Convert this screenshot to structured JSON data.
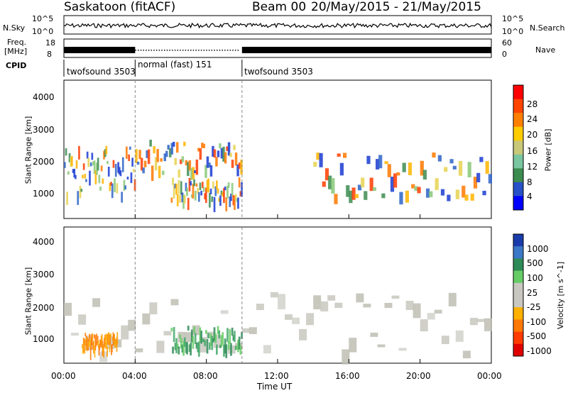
{
  "header": {
    "radar": "Saskatoon (fitACF)",
    "beam": "Beam 00",
    "dates": "20/May/2015 - 21/May/2015"
  },
  "top_panels": {
    "nsky_label": "N.Sky",
    "nsky_ticks": [
      "10^5",
      "10^0"
    ],
    "nsearch_label": "N.Search",
    "nsearch_ticks": [
      "10^5",
      "10^0"
    ],
    "freq_label_1": "Freq.",
    "freq_label_2": "[MHz]",
    "freq_ticks": [
      "18",
      "8"
    ],
    "nave_label": "Nave",
    "nave_ticks": [
      "60",
      "0"
    ],
    "cpid_label": "CPID",
    "cpid_segments": [
      {
        "label": "twofsound 3503",
        "start_hour": 0
      },
      {
        "label": "normal (fast) 151",
        "start_hour": 4
      },
      {
        "label": "twofsound 3503",
        "start_hour": 10
      }
    ]
  },
  "chart_data": [
    {
      "type": "heatmap",
      "parameter": "Power",
      "ylabel": "Slant Range [km]",
      "ylim": [
        180,
        4600
      ],
      "yticks": [
        "4000",
        "3000",
        "2000",
        "1000"
      ],
      "xlim_hours": [
        0,
        24
      ],
      "colorbar_label": "Power [dB]",
      "colorbar_ticks": [
        "28",
        "24",
        "20",
        "16",
        "12",
        "8",
        "4"
      ],
      "colorbar_colors": [
        "#0000ff",
        "#2850c8",
        "#3c8c50",
        "#7ac6a0",
        "#c8c878",
        "#ffcc00",
        "#ff8000",
        "#ff4400",
        "#ff0000"
      ],
      "features": [
        {
          "name": "band-0-4",
          "hours": [
            0,
            4
          ],
          "range_km": [
            1000,
            2500
          ]
        },
        {
          "name": "band-4-10",
          "hours": [
            4,
            10
          ],
          "range_km": [
            1700,
            2700
          ]
        },
        {
          "name": "feature-6-10",
          "hours": [
            6,
            10
          ],
          "range_km": [
            800,
            1500
          ]
        },
        {
          "name": "band-14-24",
          "hours": [
            14,
            24
          ],
          "range_km": [
            900,
            2300
          ]
        }
      ]
    },
    {
      "type": "heatmap",
      "parameter": "Velocity",
      "ylabel": "Slant Range [km]",
      "ylim": [
        180,
        4600
      ],
      "yticks": [
        "4000",
        "3000",
        "2000",
        "1000"
      ],
      "xlim_hours": [
        0,
        24
      ],
      "xticks": [
        "00:00",
        "04:00",
        "08:00",
        "12:00",
        "16:00",
        "20:00",
        "00:00"
      ],
      "xlabel": "Time UT",
      "colorbar_label": "Velocity [m s^-1]",
      "colorbar_ticks": [
        "1000",
        "500",
        "100",
        "25",
        "-25",
        "-100",
        "-500",
        "-1000"
      ],
      "colorbar_colors": [
        "#1a3caa",
        "#3c78c8",
        "#2e8b57",
        "#66cc66",
        "#c8c8c0",
        "#c8c8c0",
        "#ffb000",
        "#ff7800",
        "#ff3c00",
        "#e00000"
      ],
      "features": [
        {
          "name": "ground-scatter",
          "hours": [
            0,
            24
          ],
          "range_km": [
            500,
            2500
          ],
          "velocity": "-25 to 25"
        },
        {
          "name": "negative-patch",
          "hours": [
            1,
            3
          ],
          "range_km": [
            700,
            1200
          ],
          "velocity": "-500 to -100"
        },
        {
          "name": "positive-patch",
          "hours": [
            6,
            10
          ],
          "range_km": [
            700,
            1400
          ],
          "velocity": "100 to 500"
        }
      ]
    }
  ]
}
